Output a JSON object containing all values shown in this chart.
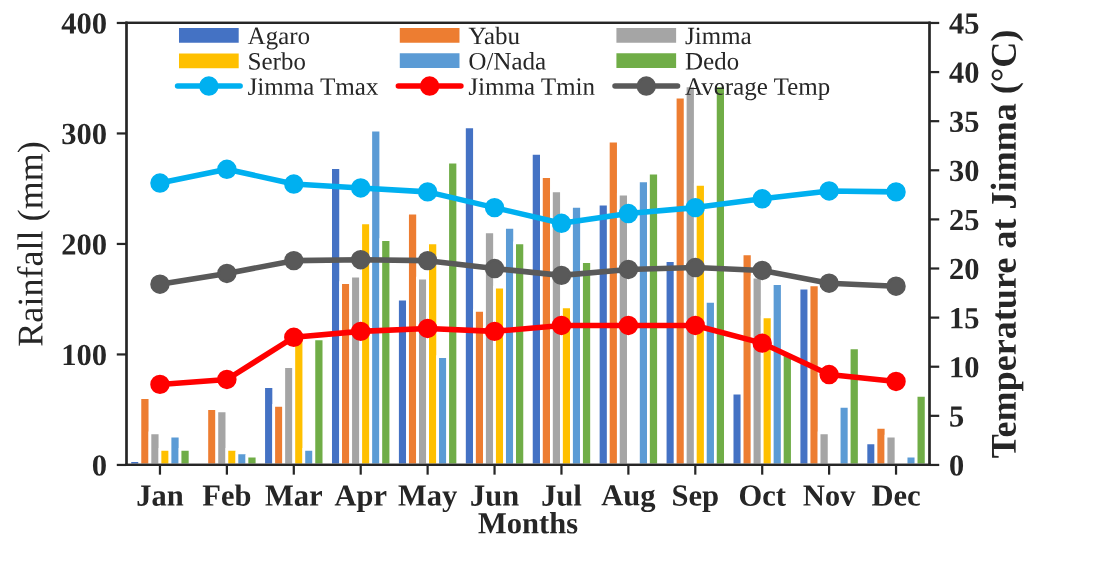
{
  "chart_data": {
    "type": "bar",
    "xlabel": "Months",
    "ylabel": "Rainfall (mm)",
    "y2label": "Temperature at Jimma (°C)",
    "categories": [
      "Jan",
      "Feb",
      "Mar",
      "Apr",
      "May",
      "Jun",
      "Jul",
      "Aug",
      "Sep",
      "Oct",
      "Nov",
      "Dec"
    ],
    "series": [
      {
        "name": "Agaro",
        "color": "#4472c4",
        "values": [
          4,
          2,
          71,
          269,
          150,
          306,
          282,
          236,
          185,
          65,
          160,
          20
        ]
      },
      {
        "name": "Yabu",
        "color": "#ed7d31",
        "values": [
          61,
          51,
          54,
          165,
          228,
          140,
          261,
          293,
          333,
          191,
          163,
          34
        ]
      },
      {
        "name": "Jimma",
        "color": "#a5a5a5",
        "values": [
          29,
          49,
          89,
          171,
          169,
          211,
          248,
          245,
          343,
          170,
          29,
          26
        ]
      },
      {
        "name": "Serbo",
        "color": "#ffc000",
        "values": [
          14,
          14,
          114,
          219,
          201,
          161,
          143,
          null,
          254,
          134,
          null,
          null
        ]
      },
      {
        "name": "O/Nada",
        "color": "#5b9bd5",
        "values": [
          26,
          11,
          14,
          303,
          98,
          215,
          234,
          257,
          148,
          164,
          53,
          8
        ]
      },
      {
        "name": "Dedo",
        "color": "#70ad47",
        "values": [
          14,
          8,
          114,
          204,
          274,
          201,
          184,
          264,
          343,
          100,
          106,
          63
        ]
      },
      {
        "name": "Jimma Tmax",
        "type": "line",
        "axis": "y2",
        "color": "#00b0f0",
        "values": [
          28.7,
          30.1,
          28.6,
          28.2,
          27.8,
          26.2,
          24.6,
          25.6,
          26.2,
          27.1,
          27.9,
          27.8
        ]
      },
      {
        "name": "Jimma Tmin",
        "type": "line",
        "axis": "y2",
        "color": "#ff0000",
        "values": [
          8.2,
          8.7,
          13.0,
          13.6,
          13.9,
          13.6,
          14.2,
          14.2,
          14.2,
          12.4,
          9.2,
          8.5
        ]
      },
      {
        "name": "Average Temp",
        "type": "line",
        "axis": "y2",
        "color": "#595959",
        "values": [
          18.4,
          19.5,
          20.8,
          20.9,
          20.8,
          20.0,
          19.3,
          19.9,
          20.1,
          19.8,
          18.5,
          18.2
        ]
      }
    ],
    "ylim": [
      0,
      400
    ],
    "yticks": [
      0,
      100,
      200,
      300,
      400
    ],
    "y2lim": [
      0,
      45
    ],
    "y2ticks": [
      0,
      5,
      10,
      15,
      20,
      25,
      30,
      35,
      40,
      45
    ],
    "marker": "circle",
    "legend": "top",
    "grid": false
  }
}
